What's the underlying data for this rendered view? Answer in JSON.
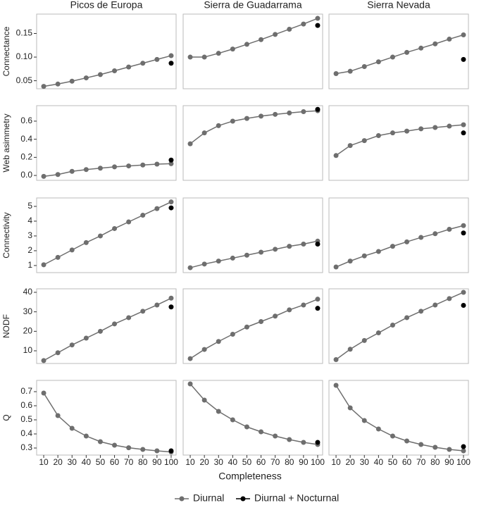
{
  "xlabel": "Completeness",
  "chart_data": [
    {
      "type": "line",
      "title": "Picos de Europa",
      "ylabel": "Connectance",
      "x": [
        10,
        20,
        30,
        40,
        50,
        60,
        70,
        80,
        90,
        100
      ],
      "xlim": [
        5,
        103.5
      ],
      "ylim": [
        0.033,
        0.191
      ],
      "yticks": [
        {
          "value": 0.05,
          "label": "0.05"
        },
        {
          "value": 0.1,
          "label": "0.10"
        },
        {
          "value": 0.15,
          "label": "0.15"
        }
      ],
      "series": [
        {
          "name": "Diurnal",
          "color": "#6e6e6e",
          "values": [
            0.038,
            0.043,
            0.049,
            0.056,
            0.063,
            0.071,
            0.079,
            0.087,
            0.095,
            0.103
          ]
        },
        {
          "name": "Diurnal + Nocturnal",
          "color": "#000000",
          "values": [
            null,
            null,
            null,
            null,
            null,
            null,
            null,
            null,
            null,
            0.087
          ]
        }
      ]
    },
    {
      "type": "line",
      "title": "Sierra de Guadarrama",
      "x": [
        10,
        20,
        30,
        40,
        50,
        60,
        70,
        80,
        90,
        100
      ],
      "xlim": [
        5,
        103.5
      ],
      "ylim": [
        0.033,
        0.191
      ],
      "series": [
        {
          "name": "Diurnal",
          "color": "#6e6e6e",
          "values": [
            0.1,
            0.1,
            0.108,
            0.117,
            0.127,
            0.137,
            0.148,
            0.159,
            0.17,
            0.182
          ]
        },
        {
          "name": "Diurnal + Nocturnal",
          "color": "#000000",
          "values": [
            null,
            null,
            null,
            null,
            null,
            null,
            null,
            null,
            null,
            0.167
          ]
        }
      ]
    },
    {
      "type": "line",
      "title": "Sierra Nevada",
      "x": [
        10,
        20,
        30,
        40,
        50,
        60,
        70,
        80,
        90,
        100
      ],
      "xlim": [
        5,
        103.5
      ],
      "ylim": [
        0.033,
        0.191
      ],
      "series": [
        {
          "name": "Diurnal",
          "color": "#6e6e6e",
          "values": [
            0.065,
            0.07,
            0.08,
            0.09,
            0.1,
            0.11,
            0.119,
            0.128,
            0.138,
            0.147
          ]
        },
        {
          "name": "Diurnal + Nocturnal",
          "color": "#000000",
          "values": [
            null,
            null,
            null,
            null,
            null,
            null,
            null,
            null,
            null,
            0.095
          ]
        }
      ]
    },
    {
      "type": "line",
      "ylabel": "Web asimmetry",
      "x": [
        10,
        20,
        30,
        40,
        50,
        60,
        70,
        80,
        90,
        100
      ],
      "xlim": [
        5,
        103.5
      ],
      "ylim": [
        -0.054,
        0.771
      ],
      "yticks": [
        {
          "value": 0,
          "label": "0.0"
        },
        0.2,
        0.4,
        0.6
      ],
      "series": [
        {
          "name": "Diurnal",
          "color": "#6e6e6e",
          "values": [
            -0.01,
            0.01,
            0.045,
            0.065,
            0.08,
            0.095,
            0.105,
            0.115,
            0.125,
            0.13
          ]
        },
        {
          "name": "Diurnal + Nocturnal",
          "color": "#000000",
          "values": [
            null,
            null,
            null,
            null,
            null,
            null,
            null,
            null,
            null,
            0.17
          ]
        }
      ]
    },
    {
      "type": "line",
      "x": [
        10,
        20,
        30,
        40,
        50,
        60,
        70,
        80,
        90,
        100
      ],
      "xlim": [
        5,
        103.5
      ],
      "ylim": [
        -0.054,
        0.771
      ],
      "series": [
        {
          "name": "Diurnal",
          "color": "#6e6e6e",
          "values": [
            0.35,
            0.47,
            0.55,
            0.6,
            0.63,
            0.655,
            0.675,
            0.69,
            0.705,
            0.715
          ]
        },
        {
          "name": "Diurnal + Nocturnal",
          "color": "#000000",
          "values": [
            null,
            null,
            null,
            null,
            null,
            null,
            null,
            null,
            null,
            0.73
          ]
        }
      ]
    },
    {
      "type": "line",
      "x": [
        10,
        20,
        30,
        40,
        50,
        60,
        70,
        80,
        90,
        100
      ],
      "xlim": [
        5,
        103.5
      ],
      "ylim": [
        -0.054,
        0.771
      ],
      "series": [
        {
          "name": "Diurnal",
          "color": "#6e6e6e",
          "values": [
            0.22,
            0.33,
            0.385,
            0.44,
            0.47,
            0.49,
            0.515,
            0.53,
            0.545,
            0.56
          ]
        },
        {
          "name": "Diurnal + Nocturnal",
          "color": "#000000",
          "values": [
            null,
            null,
            null,
            null,
            null,
            null,
            null,
            null,
            null,
            0.47
          ]
        }
      ]
    },
    {
      "type": "line",
      "ylabel": "Connectivity",
      "x": [
        10,
        20,
        30,
        40,
        50,
        60,
        70,
        80,
        90,
        100
      ],
      "xlim": [
        5,
        103.5
      ],
      "ylim": [
        0.52,
        5.57
      ],
      "yticks": [
        1,
        2,
        3,
        4,
        5
      ],
      "series": [
        {
          "name": "Diurnal",
          "color": "#6e6e6e",
          "values": [
            1.05,
            1.55,
            2.05,
            2.55,
            3.0,
            3.5,
            3.95,
            4.4,
            4.85,
            5.3
          ]
        },
        {
          "name": "Diurnal + Nocturnal",
          "color": "#000000",
          "values": [
            null,
            null,
            null,
            null,
            null,
            null,
            null,
            null,
            null,
            4.9
          ]
        }
      ]
    },
    {
      "type": "line",
      "x": [
        10,
        20,
        30,
        40,
        50,
        60,
        70,
        80,
        90,
        100
      ],
      "xlim": [
        5,
        103.5
      ],
      "ylim": [
        0.52,
        5.57
      ],
      "series": [
        {
          "name": "Diurnal",
          "color": "#6e6e6e",
          "values": [
            0.85,
            1.1,
            1.3,
            1.5,
            1.7,
            1.9,
            2.1,
            2.3,
            2.45,
            2.65
          ]
        },
        {
          "name": "Diurnal + Nocturnal",
          "color": "#000000",
          "values": [
            null,
            null,
            null,
            null,
            null,
            null,
            null,
            null,
            null,
            2.45
          ]
        }
      ]
    },
    {
      "type": "line",
      "x": [
        10,
        20,
        30,
        40,
        50,
        60,
        70,
        80,
        90,
        100
      ],
      "xlim": [
        5,
        103.5
      ],
      "ylim": [
        0.52,
        5.57
      ],
      "series": [
        {
          "name": "Diurnal",
          "color": "#6e6e6e",
          "values": [
            0.9,
            1.3,
            1.65,
            1.95,
            2.3,
            2.6,
            2.9,
            3.15,
            3.45,
            3.7
          ]
        },
        {
          "name": "Diurnal + Nocturnal",
          "color": "#000000",
          "values": [
            null,
            null,
            null,
            null,
            null,
            null,
            null,
            null,
            null,
            3.2
          ]
        }
      ]
    },
    {
      "type": "line",
      "ylabel": "NODF",
      "x": [
        10,
        20,
        30,
        40,
        50,
        60,
        70,
        80,
        90,
        100
      ],
      "xlim": [
        5,
        103.5
      ],
      "ylim": [
        3.5,
        41.8
      ],
      "yticks": [
        10,
        20,
        30,
        40
      ],
      "series": [
        {
          "name": "Diurnal",
          "color": "#6e6e6e",
          "values": [
            5,
            9,
            13,
            16.5,
            20,
            23.8,
            27,
            30.3,
            33.5,
            37
          ]
        },
        {
          "name": "Diurnal + Nocturnal",
          "color": "#000000",
          "values": [
            null,
            null,
            null,
            null,
            null,
            null,
            null,
            null,
            null,
            32.5
          ]
        }
      ]
    },
    {
      "type": "line",
      "x": [
        10,
        20,
        30,
        40,
        50,
        60,
        70,
        80,
        90,
        100
      ],
      "xlim": [
        5,
        103.5
      ],
      "ylim": [
        3.5,
        41.8
      ],
      "series": [
        {
          "name": "Diurnal",
          "color": "#6e6e6e",
          "values": [
            6,
            10.7,
            14.8,
            18.5,
            22.2,
            25,
            27.8,
            31,
            33.5,
            36.5
          ]
        },
        {
          "name": "Diurnal + Nocturnal",
          "color": "#000000",
          "values": [
            null,
            null,
            null,
            null,
            null,
            null,
            null,
            null,
            null,
            31.8
          ]
        }
      ]
    },
    {
      "type": "line",
      "x": [
        10,
        20,
        30,
        40,
        50,
        60,
        70,
        80,
        90,
        100
      ],
      "xlim": [
        5,
        103.5
      ],
      "ylim": [
        3.5,
        41.8
      ],
      "series": [
        {
          "name": "Diurnal",
          "color": "#6e6e6e",
          "values": [
            5.5,
            10.8,
            15.3,
            19.2,
            23.2,
            27,
            30.3,
            33.5,
            36.8,
            40
          ]
        },
        {
          "name": "Diurnal + Nocturnal",
          "color": "#000000",
          "values": [
            null,
            null,
            null,
            null,
            null,
            null,
            null,
            null,
            null,
            33.3
          ]
        }
      ]
    },
    {
      "type": "line",
      "ylabel": "Q",
      "x": [
        10,
        20,
        30,
        40,
        50,
        60,
        70,
        80,
        90,
        100
      ],
      "xlim": [
        5,
        103.5
      ],
      "ylim": [
        0.25,
        0.78
      ],
      "yticks": [
        0.3,
        0.4,
        0.5,
        0.6,
        0.7
      ],
      "xticks": [
        10,
        20,
        30,
        40,
        50,
        60,
        70,
        80,
        90,
        100
      ],
      "series": [
        {
          "name": "Diurnal",
          "color": "#6e6e6e",
          "values": [
            0.69,
            0.53,
            0.44,
            0.385,
            0.345,
            0.32,
            0.302,
            0.29,
            0.28,
            0.272
          ]
        },
        {
          "name": "Diurnal + Nocturnal",
          "color": "#000000",
          "values": [
            null,
            null,
            null,
            null,
            null,
            null,
            null,
            null,
            null,
            0.28
          ]
        }
      ]
    },
    {
      "type": "line",
      "x": [
        10,
        20,
        30,
        40,
        50,
        60,
        70,
        80,
        90,
        100
      ],
      "xlim": [
        5,
        103.5
      ],
      "ylim": [
        0.25,
        0.78
      ],
      "xticks": [
        10,
        20,
        30,
        40,
        50,
        60,
        70,
        80,
        90,
        100
      ],
      "series": [
        {
          "name": "Diurnal",
          "color": "#6e6e6e",
          "values": [
            0.755,
            0.64,
            0.56,
            0.5,
            0.45,
            0.415,
            0.385,
            0.36,
            0.34,
            0.325
          ]
        },
        {
          "name": "Diurnal + Nocturnal",
          "color": "#000000",
          "values": [
            null,
            null,
            null,
            null,
            null,
            null,
            null,
            null,
            null,
            0.34
          ]
        }
      ]
    },
    {
      "type": "line",
      "x": [
        10,
        20,
        30,
        40,
        50,
        60,
        70,
        80,
        90,
        100
      ],
      "xlim": [
        5,
        103.5
      ],
      "ylim": [
        0.25,
        0.78
      ],
      "xticks": [
        10,
        20,
        30,
        40,
        50,
        60,
        70,
        80,
        90,
        100
      ],
      "series": [
        {
          "name": "Diurnal",
          "color": "#6e6e6e",
          "values": [
            0.745,
            0.585,
            0.495,
            0.435,
            0.385,
            0.35,
            0.325,
            0.305,
            0.29,
            0.28
          ]
        },
        {
          "name": "Diurnal + Nocturnal",
          "color": "#000000",
          "values": [
            null,
            null,
            null,
            null,
            null,
            null,
            null,
            null,
            null,
            0.31
          ]
        }
      ]
    }
  ]
}
